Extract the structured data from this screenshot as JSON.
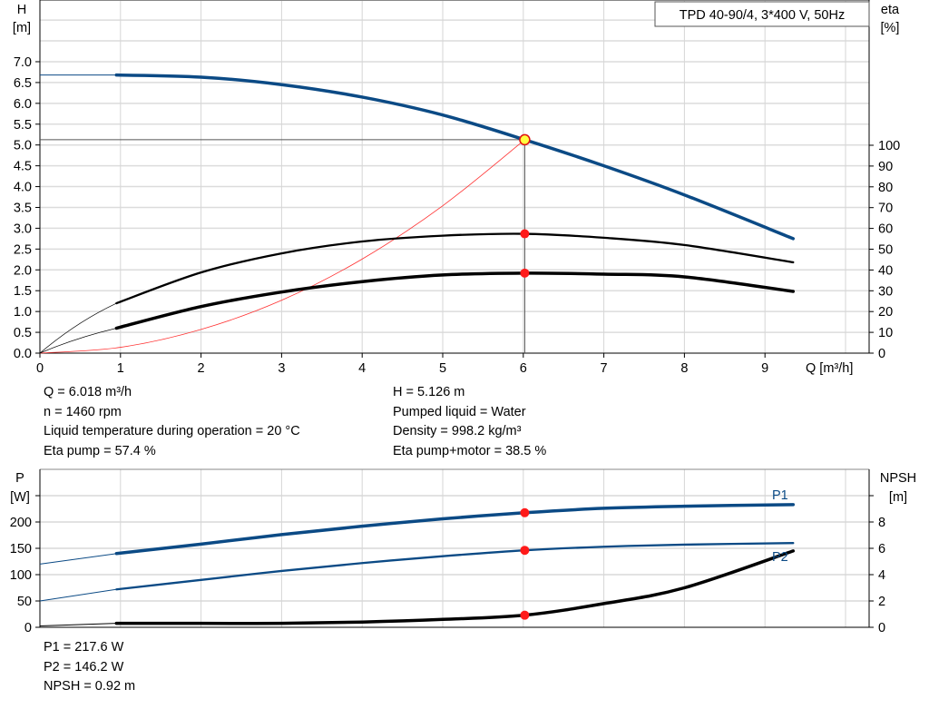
{
  "chart_data": [
    {
      "type": "line",
      "title": "TPD 40-90/4, 3*400 V, 50Hz",
      "xlabel": "Q [m³/h]",
      "ylabel_left": [
        "H",
        "[m]"
      ],
      "ylabel_right": [
        "eta",
        "[%]"
      ],
      "xlim": [
        0,
        10.2
      ],
      "ylim_left": [
        0,
        8.5
      ],
      "ylim_right": [
        0,
        100
      ],
      "x_ticks": [
        "0",
        "1",
        "2",
        "3",
        "4",
        "5",
        "6",
        "7",
        "8",
        "9"
      ],
      "y_ticks_left": [
        "0.0",
        "0.5",
        "1.0",
        "1.5",
        "2.0",
        "2.5",
        "3.0",
        "3.5",
        "4.0",
        "4.5",
        "5.0",
        "5.5",
        "6.0",
        "6.5",
        "7.0"
      ],
      "y_ticks_right": [
        "0",
        "10",
        "20",
        "30",
        "40",
        "50",
        "60",
        "70",
        "80",
        "90",
        "100"
      ],
      "grid": true,
      "series": [
        {
          "axis": "left",
          "color": "#0b4a85",
          "x": [
            0,
            0.95,
            2,
            3,
            4,
            5,
            6.018,
            7,
            8,
            9.35
          ],
          "values": [
            6.68,
            6.68,
            6.63,
            6.45,
            6.15,
            5.72,
            5.126,
            4.5,
            3.8,
            2.75
          ]
        },
        {
          "axis": "right",
          "color": "#000000",
          "x": [
            0.95,
            2,
            3,
            4,
            5,
            6.018,
            7,
            8,
            9.35
          ],
          "values": [
            24,
            38.8,
            48,
            53.7,
            56.5,
            57.4,
            55.5,
            52,
            43.7
          ]
        },
        {
          "axis": "right",
          "color": "#000000",
          "x": [
            0.95,
            2,
            3,
            4,
            5,
            6.018,
            7,
            8,
            9.35
          ],
          "values": [
            12,
            22.4,
            29.4,
            34.4,
            37.6,
            38.5,
            38,
            36.7,
            29.7
          ]
        },
        {
          "axis": "left",
          "color": "#ff3030",
          "type": "system-curve",
          "x": [
            0,
            1,
            2,
            3,
            4,
            5,
            6.018
          ],
          "values": [
            0,
            0.14,
            0.57,
            1.27,
            2.26,
            3.54,
            5.126
          ]
        }
      ],
      "operating_point": {
        "Q": 6.018,
        "H": 5.126,
        "eta_pump": 57.4,
        "eta_pump_motor": 38.5
      }
    },
    {
      "type": "line",
      "ylabel_left": [
        "P",
        "[W]"
      ],
      "ylabel_right": [
        "NPSH",
        "[m]"
      ],
      "xlim": [
        0,
        10.2
      ],
      "ylim_left": [
        0,
        300
      ],
      "ylim_right": [
        0,
        12
      ],
      "y_ticks_left": [
        "0",
        "50",
        "100",
        "150",
        "200"
      ],
      "y_ticks_right": [
        "0",
        "2",
        "4",
        "6",
        "8"
      ],
      "grid": true,
      "series": [
        {
          "name": "P1",
          "axis": "left",
          "color": "#0b4a85",
          "x": [
            0,
            0.95,
            2,
            3,
            4,
            5,
            6.018,
            7,
            8,
            9.35
          ],
          "values": [
            120,
            140,
            158,
            176,
            192,
            206,
            217.6,
            226,
            230,
            233
          ]
        },
        {
          "name": "P2",
          "axis": "left",
          "color": "#0b4a85",
          "x": [
            0,
            0.95,
            2,
            3,
            4,
            5,
            6.018,
            7,
            8,
            9.35
          ],
          "values": [
            50,
            72,
            90,
            107,
            122,
            135,
            146.2,
            153,
            157,
            160
          ]
        },
        {
          "axis": "right",
          "color": "#000000",
          "x": [
            0,
            0.95,
            2,
            3,
            4,
            5,
            6.018,
            7,
            8,
            9.35
          ],
          "values": [
            0.1,
            0.3,
            0.3,
            0.3,
            0.4,
            0.6,
            0.92,
            1.8,
            3.0,
            5.8
          ]
        }
      ],
      "operating_point": {
        "Q": 6.018,
        "P1": 217.6,
        "P2": 146.2,
        "NPSH": 0.92
      }
    }
  ],
  "info_top": {
    "left": [
      "Q = 6.018 m³/h",
      "n = 1460 rpm",
      "Liquid temperature during operation = 20 °C",
      "Eta pump = 57.4 %"
    ],
    "right": [
      "H = 5.126 m",
      "Pumped liquid = Water",
      "Density = 998.2 kg/m³",
      "Eta pump+motor = 38.5 %"
    ]
  },
  "info_bottom": [
    "P1 = 217.6 W",
    "P2 = 146.2 W",
    "NPSH = 0.92 m"
  ]
}
